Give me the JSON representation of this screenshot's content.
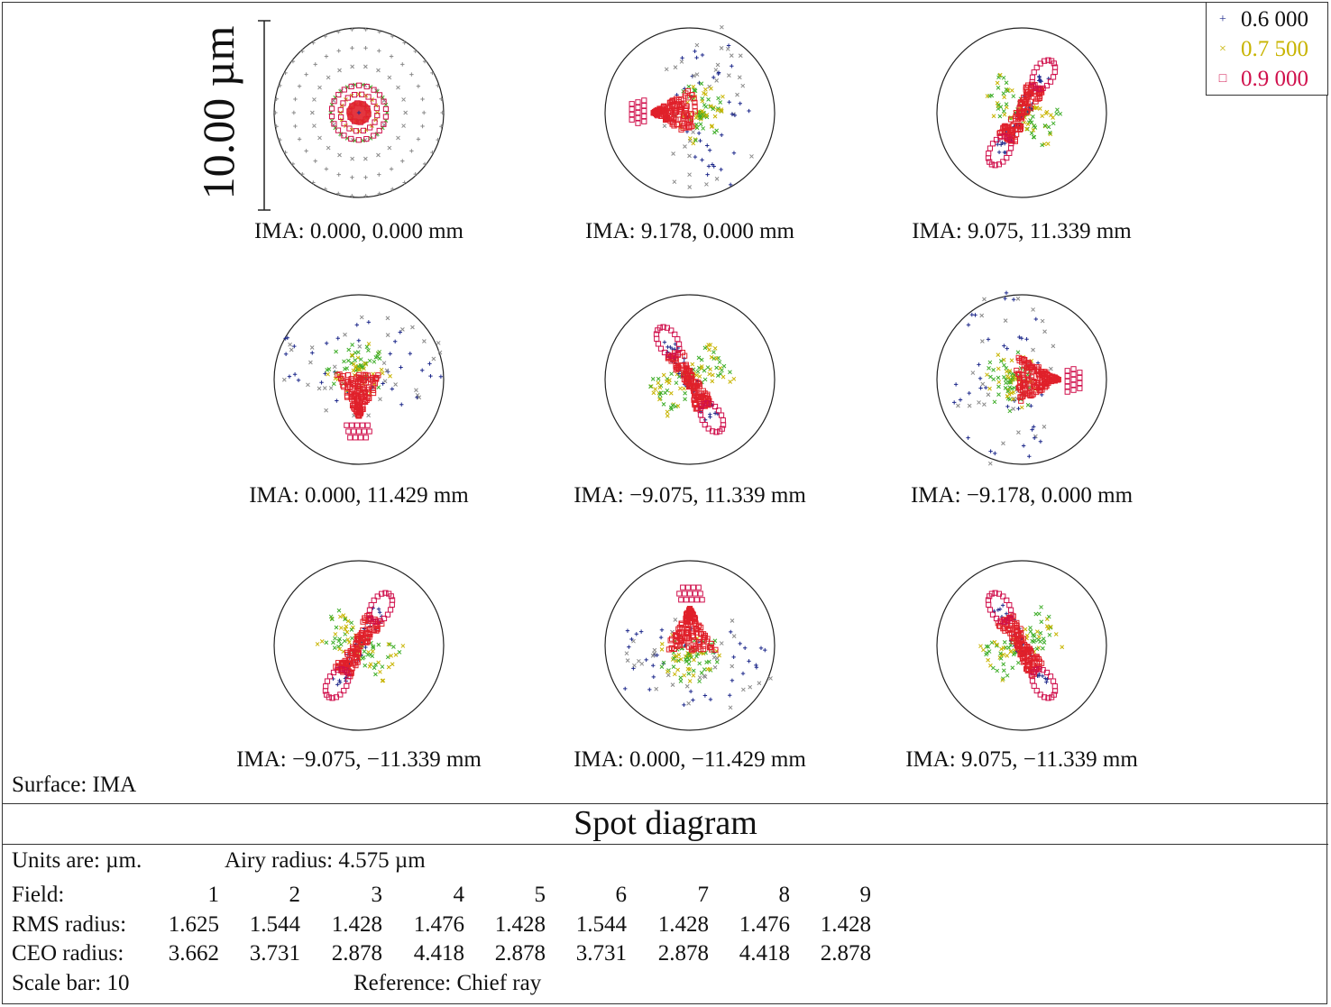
{
  "chart_data": {
    "type": "scatter",
    "title": "Spot diagram",
    "scale_bar_label": "10.00 µm",
    "surface": "Surface: IMA",
    "legend": [
      {
        "label": "0.6 000",
        "marker": "+",
        "color": "#1f2a8c"
      },
      {
        "label": "0.7 500",
        "marker": "×",
        "color": "#c8b400"
      },
      {
        "label": "0.9 000",
        "marker": "□",
        "color": "#d0104c"
      }
    ],
    "series_colors": {
      "blue": "#1f2a8c",
      "green": "#3fae2a",
      "yellow": "#c8b400",
      "red": "#e0202a",
      "magenta": "#d0104c",
      "grey": "#8a8a8a"
    },
    "fields": [
      {
        "caption": "IMA: 0.000, 0.000 mm",
        "pattern": "center"
      },
      {
        "caption": "IMA: 9.178, 0.000 mm",
        "pattern": "coma-left"
      },
      {
        "caption": "IMA: 9.075, 11.339 mm",
        "pattern": "bow-up-right"
      },
      {
        "caption": "IMA: 0.000, 11.429 mm",
        "pattern": "coma-down"
      },
      {
        "caption": "IMA: −9.075, 11.339 mm",
        "pattern": "bow-up-left"
      },
      {
        "caption": "IMA: −9.178, 0.000 mm",
        "pattern": "coma-right"
      },
      {
        "caption": "IMA: −9.075, −11.339 mm",
        "pattern": "bow-down-left"
      },
      {
        "caption": "IMA: 0.000, −11.429 mm",
        "pattern": "coma-up"
      },
      {
        "caption": "IMA: 9.075, −11.339 mm",
        "pattern": "bow-down-right"
      }
    ],
    "airy_radius_um": 4.575,
    "rms_radius": [
      1.625,
      1.544,
      1.428,
      1.476,
      1.428,
      1.544,
      1.428,
      1.476,
      1.428
    ],
    "ceo_radius": [
      3.662,
      3.731,
      2.878,
      4.418,
      2.878,
      3.731,
      2.878,
      4.418,
      2.878
    ]
  },
  "info": {
    "units": "Units are: µm.",
    "airy": "Airy radius: 4.575 µm",
    "field_label": "Field:",
    "field_numbers": [
      "1",
      "2",
      "3",
      "4",
      "5",
      "6",
      "7",
      "8",
      "9"
    ],
    "rms_label": "RMS radius:",
    "rms_values": [
      "1.625",
      "1.544",
      "1.428",
      "1.476",
      "1.428",
      "1.544",
      "1.428",
      "1.476",
      "1.428"
    ],
    "ceo_label": "CEO radius:",
    "ceo_values": [
      "3.662",
      "3.731",
      "2.878",
      "4.418",
      "2.878",
      "3.731",
      "2.878",
      "4.418",
      "2.878"
    ],
    "scale_bar": "Scale bar: 10",
    "reference": "Reference: Chief ray"
  }
}
